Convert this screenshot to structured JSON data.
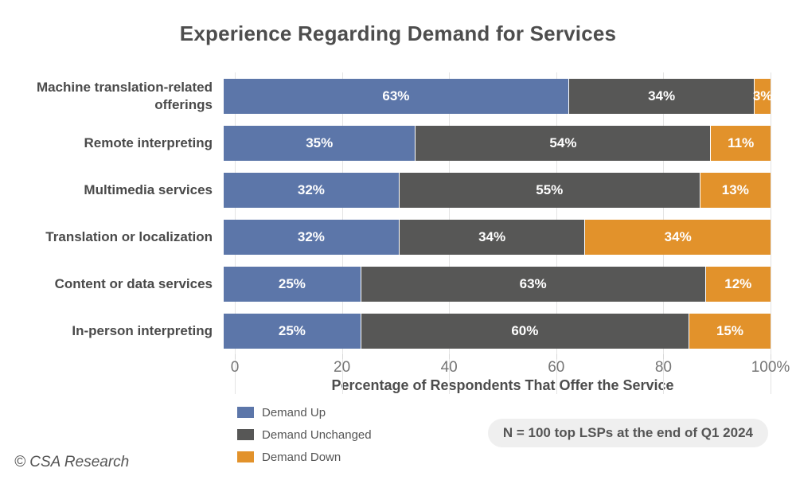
{
  "chart_data": {
    "type": "bar",
    "orientation": "horizontal",
    "stacked": true,
    "title": "Experience Regarding Demand for Services",
    "categories": [
      "Machine translation-related offerings",
      "Remote interpreting",
      "Multimedia services",
      "Translation or localization",
      "Content or data services",
      "In-person interpreting"
    ],
    "series": [
      {
        "name": "Demand Up",
        "color": "#5C76A9",
        "values": [
          63,
          35,
          32,
          32,
          25,
          25
        ]
      },
      {
        "name": "Demand Unchanged",
        "color": "#575756",
        "values": [
          34,
          54,
          55,
          34,
          63,
          60
        ]
      },
      {
        "name": "Demand Down",
        "color": "#E2922B",
        "values": [
          3,
          11,
          13,
          34,
          12,
          15
        ]
      }
    ],
    "value_suffix": "%",
    "xlabel": "Percentage of Respondents That Offer the Service",
    "xlim": [
      0,
      100
    ],
    "xticks": [
      0,
      20,
      40,
      60,
      80,
      100
    ],
    "xtick_labels": [
      "0",
      "20",
      "40",
      "60",
      "80",
      "100%"
    ],
    "grid": "vertical",
    "legend_position": "bottom-left"
  },
  "note": "N = 100 top LSPs at the end of Q1 2024",
  "footer": {
    "copyright": "© CSA Research"
  },
  "colors": {
    "demand_up": "#5C76A9",
    "demand_unchanged": "#575756",
    "demand_down": "#E2922B",
    "badge_background": "#efefef",
    "gridline": "#e4e4e4",
    "text": "#4d4d4d"
  }
}
